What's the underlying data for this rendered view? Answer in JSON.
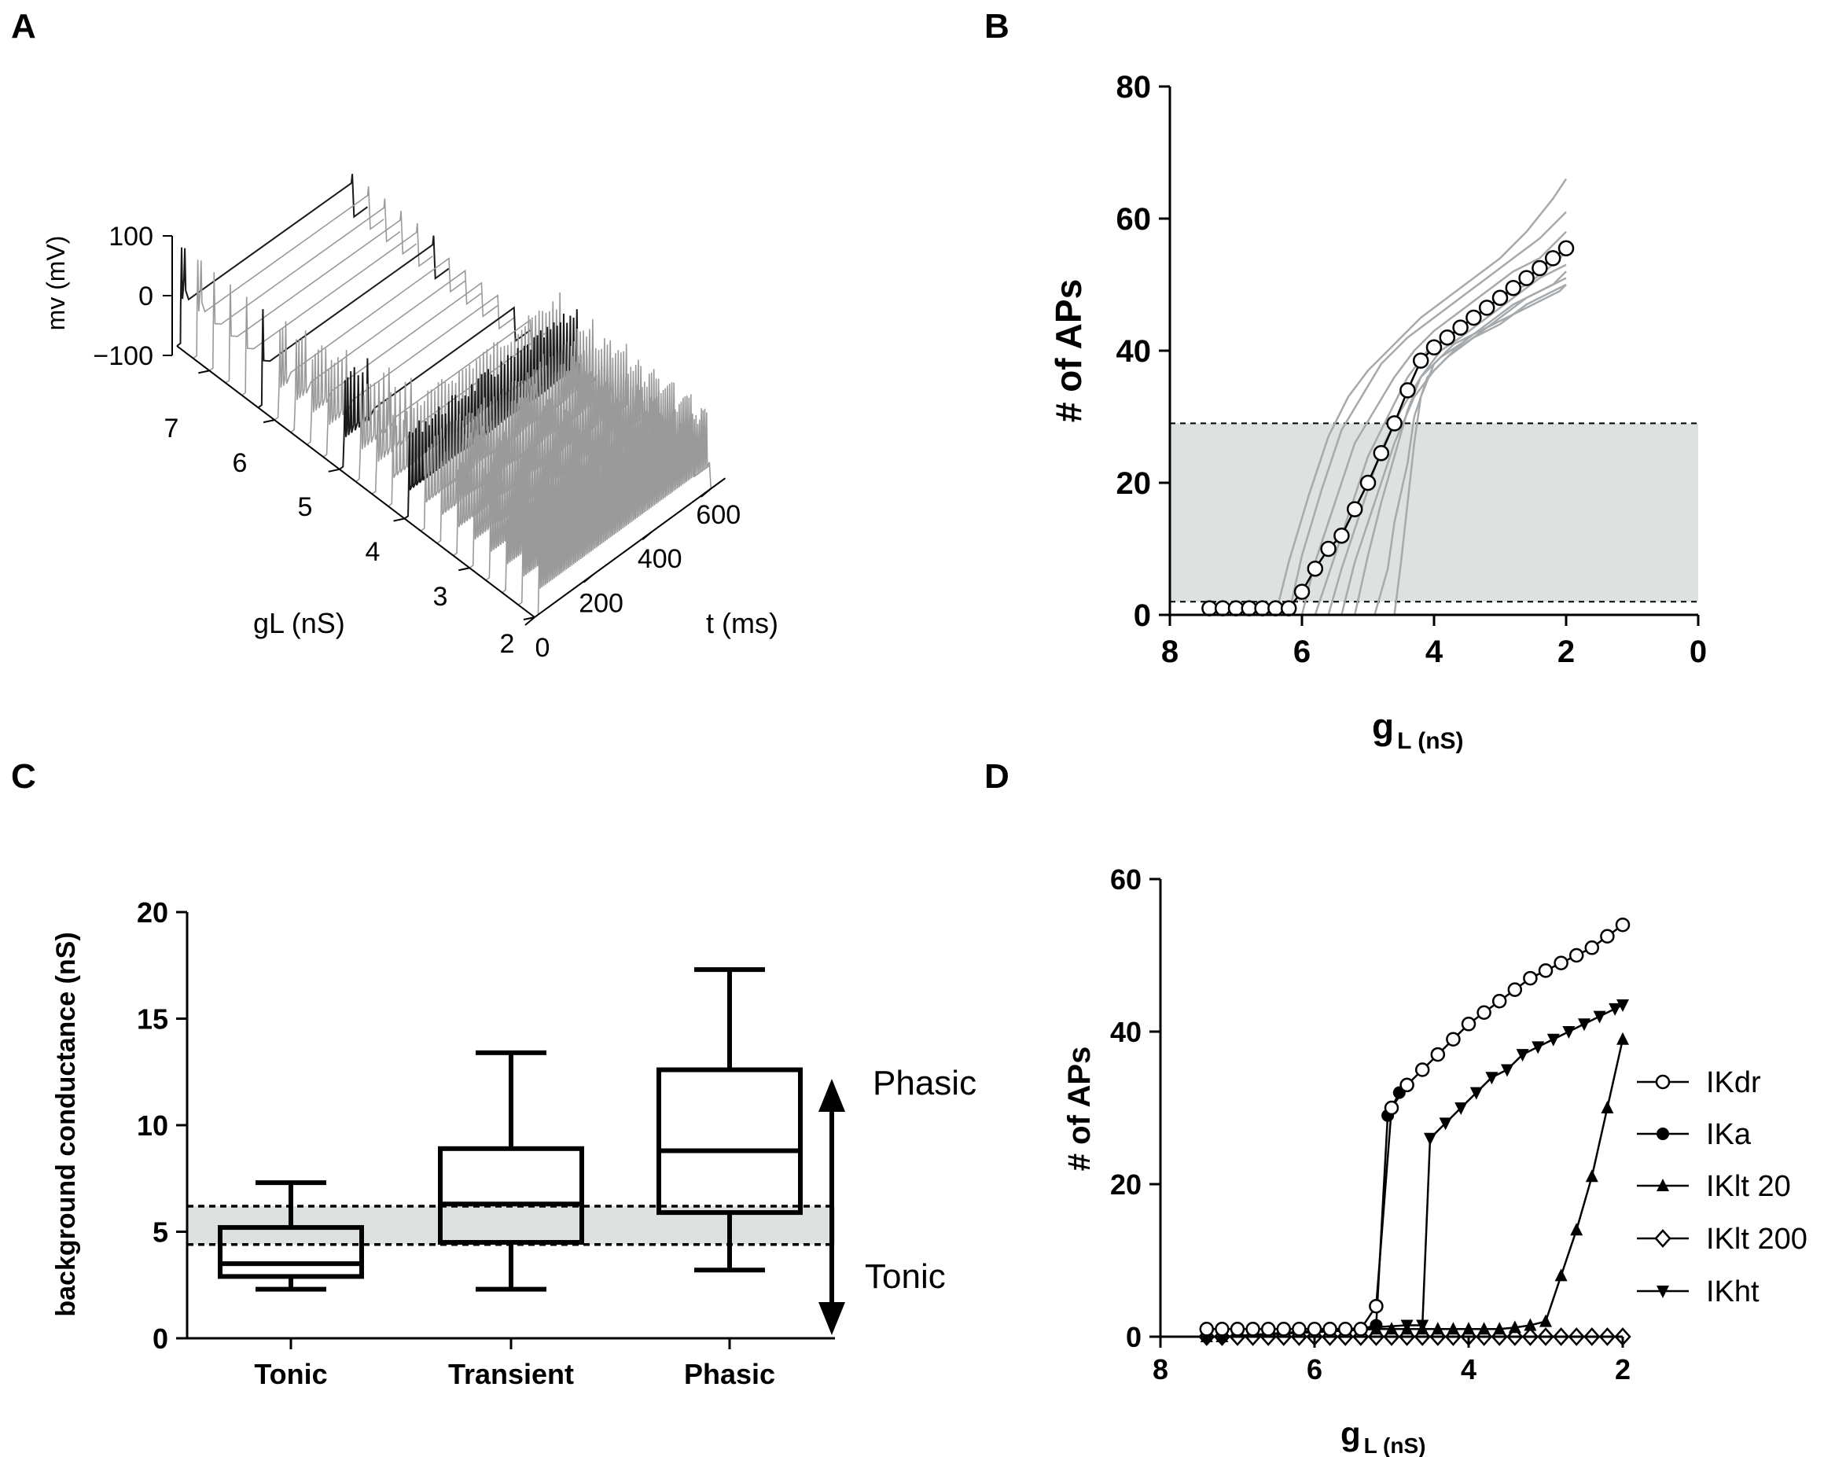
{
  "figure": {
    "panel_labels": [
      "A",
      "B",
      "C",
      "D"
    ]
  },
  "colors": {
    "ink": "#000000",
    "trace_gray": "#9a9a9a",
    "trace_dark": "#1a1a1a",
    "shade": "#dde2e0",
    "model_gray": "#a6aaad"
  },
  "chart_data": [
    {
      "panel": "A",
      "type": "line",
      "title": "",
      "description_axes": "3D waterfall of membrane voltage traces vs time for a range of leak conductances",
      "xlabel": "t (ms)",
      "ylabel": "gL (nS)",
      "zlabel": "mv (mV)",
      "x_ticks": [
        "0",
        "200",
        "400",
        "600"
      ],
      "y_ticks": [
        "2",
        "3",
        "4",
        "5",
        "6",
        "7"
      ],
      "z_ticks": [
        "100",
        "0",
        "−100"
      ],
      "x_range": [
        0,
        650
      ],
      "y_range": [
        2,
        7.5
      ],
      "z_range": [
        -100,
        100
      ],
      "gl_values": [
        7.5,
        7.25,
        7.0,
        6.75,
        6.5,
        6.25,
        6.0,
        5.75,
        5.5,
        5.25,
        5.0,
        4.75,
        4.5,
        4.25,
        4.0,
        3.75,
        3.5,
        3.25,
        3.0,
        2.75,
        2.5,
        2.25,
        2.0
      ],
      "stimulus_ms": [
        0,
        600
      ]
    },
    {
      "panel": "B",
      "type": "line",
      "title": "",
      "xlabel": "g",
      "xlabel_sub": "L (nS)",
      "ylabel": "# of APs",
      "xlim": [
        8,
        0
      ],
      "ylim": [
        0,
        80
      ],
      "x_ticks": [
        "8",
        "6",
        "4",
        "2",
        "0"
      ],
      "y_ticks": [
        "0",
        "20",
        "40",
        "60",
        "80"
      ],
      "band": [
        2,
        29
      ],
      "series": [
        {
          "name": "mean",
          "x": [
            7.4,
            7.2,
            7.0,
            6.8,
            6.6,
            6.4,
            6.2,
            6.0,
            5.8,
            5.6,
            5.4,
            5.2,
            5.0,
            4.8,
            4.6,
            4.4,
            4.2,
            4.0,
            3.8,
            3.6,
            3.4,
            3.2,
            3.0,
            2.8,
            2.6,
            2.4,
            2.2,
            2.0
          ],
          "y": [
            1,
            1,
            1,
            1,
            1,
            1,
            1,
            3.5,
            7,
            10,
            12,
            16,
            20,
            24.5,
            29,
            34,
            38.5,
            40.5,
            42,
            43.5,
            45,
            46.5,
            48,
            49.5,
            51,
            52.5,
            54,
            55.5
          ]
        }
      ],
      "model_curves": [
        {
          "x": [
            6.4,
            6.2,
            5.9,
            5.6,
            5.3,
            5.0,
            4.6,
            4.2,
            3.8,
            3.4,
            3.0,
            2.6,
            2.2,
            2.0
          ],
          "y": [
            0,
            8,
            18,
            27,
            33,
            37,
            41,
            45,
            48,
            51,
            54,
            58,
            63,
            66
          ]
        },
        {
          "x": [
            6.2,
            6.0,
            5.7,
            5.4,
            5.1,
            4.8,
            4.4,
            4.0,
            3.6,
            3.2,
            2.8,
            2.4,
            2.0
          ],
          "y": [
            0,
            9,
            19,
            28,
            33,
            38,
            42,
            45,
            48,
            51,
            54,
            57,
            61
          ]
        },
        {
          "x": [
            6.0,
            5.8,
            5.5,
            5.2,
            4.9,
            4.6,
            4.3,
            4.0,
            3.6,
            3.2,
            2.8,
            2.4,
            2.0
          ],
          "y": [
            0,
            8,
            17,
            26,
            31,
            36,
            40,
            43,
            46,
            49,
            52,
            54,
            58
          ]
        },
        {
          "x": [
            5.8,
            5.6,
            5.3,
            5.0,
            4.7,
            4.4,
            4.1,
            3.8,
            3.4,
            3.0,
            2.6,
            2.2,
            2.0
          ],
          "y": [
            0,
            6,
            15,
            24,
            30,
            36,
            40,
            42,
            45,
            48,
            50,
            53,
            55
          ]
        },
        {
          "x": [
            5.6,
            5.4,
            5.1,
            4.8,
            4.5,
            4.2,
            3.9,
            3.6,
            3.2,
            2.8,
            2.4,
            2.0
          ],
          "y": [
            0,
            7,
            16,
            25,
            31,
            36,
            40,
            42,
            45,
            48,
            51,
            53
          ]
        },
        {
          "x": [
            5.4,
            5.2,
            4.9,
            4.6,
            4.3,
            4.0,
            3.7,
            3.4,
            3.0,
            2.6,
            2.2,
            2.0
          ],
          "y": [
            0,
            8,
            17,
            26,
            33,
            37,
            40,
            42,
            45,
            48,
            50,
            52
          ]
        },
        {
          "x": [
            5.2,
            5.0,
            4.8,
            4.6,
            4.4,
            4.2,
            3.9,
            3.6,
            3.2,
            2.8,
            2.4,
            2.0
          ],
          "y": [
            0,
            9,
            17,
            24,
            31,
            36,
            39,
            41,
            44,
            47,
            49,
            51
          ]
        },
        {
          "x": [
            4.9,
            4.7,
            4.6,
            4.4,
            4.3,
            4.1,
            3.8,
            3.4,
            3.0,
            2.6,
            2.2,
            2.0
          ],
          "y": [
            0,
            7,
            14,
            23,
            30,
            36,
            39,
            42,
            44,
            47,
            49,
            50
          ]
        },
        {
          "x": [
            4.6,
            4.5,
            4.4,
            4.3,
            4.2,
            4.0,
            3.7,
            3.3,
            2.9,
            2.5,
            2.1,
            2.0
          ],
          "y": [
            0,
            8,
            17,
            26,
            33,
            38,
            41,
            43,
            45,
            47,
            49,
            50
          ]
        }
      ]
    },
    {
      "panel": "C",
      "type": "box",
      "title": "",
      "ylabel": "background conductance (nS)",
      "ylim": [
        0,
        20
      ],
      "y_ticks": [
        "0",
        "5",
        "10",
        "15",
        "20"
      ],
      "categories": [
        "Tonic",
        "Transient",
        "Phasic"
      ],
      "boxes": [
        {
          "min": 2.3,
          "q1": 2.9,
          "median": 3.5,
          "q3": 5.2,
          "max": 7.3
        },
        {
          "min": 2.3,
          "q1": 4.5,
          "median": 6.3,
          "q3": 8.9,
          "max": 13.4
        },
        {
          "min": 3.2,
          "q1": 5.9,
          "median": 8.8,
          "q3": 12.6,
          "max": 17.3
        }
      ],
      "band": [
        4.4,
        6.2
      ],
      "annotations": [
        "Phasic",
        "Tonic"
      ]
    },
    {
      "panel": "D",
      "type": "line",
      "title": "",
      "xlabel": "g",
      "xlabel_sub": "L (nS)",
      "ylabel": "# of APs",
      "xlim": [
        8,
        2
      ],
      "ylim": [
        0,
        60
      ],
      "x_ticks": [
        "8",
        "6",
        "4",
        "2"
      ],
      "y_ticks": [
        "0",
        "20",
        "40",
        "60"
      ],
      "legend_position": "right",
      "series": [
        {
          "name": "IKdr",
          "marker": "circle-open",
          "x": [
            7.4,
            7.2,
            7.0,
            6.8,
            6.6,
            6.4,
            6.2,
            6.0,
            5.8,
            5.6,
            5.4,
            5.2,
            5.0,
            4.8,
            4.6,
            4.4,
            4.2,
            4.0,
            3.8,
            3.6,
            3.4,
            3.2,
            3.0,
            2.8,
            2.6,
            2.4,
            2.2,
            2.0
          ],
          "y": [
            1,
            1,
            1,
            1,
            1,
            1,
            1,
            1,
            1,
            1,
            1,
            4,
            30,
            33,
            35,
            37,
            39,
            41,
            42.5,
            44,
            45.5,
            47,
            48,
            49,
            50,
            51,
            52.5,
            54
          ]
        },
        {
          "name": "IKa",
          "marker": "circle-filled",
          "x": [
            7.4,
            7.2,
            7.0,
            6.8,
            6.6,
            6.4,
            6.2,
            6.0,
            5.8,
            5.6,
            5.4,
            5.2,
            5.05,
            4.9
          ],
          "y": [
            1,
            1,
            1,
            1,
            1,
            1,
            1,
            1,
            1,
            1,
            1,
            1.5,
            29,
            32
          ]
        },
        {
          "name": "IKlt 20",
          "marker": "triangle-up",
          "x": [
            7.4,
            7.2,
            5.2,
            5.0,
            4.8,
            4.6,
            4.4,
            4.2,
            4.0,
            3.8,
            3.6,
            3.4,
            3.2,
            3.0,
            2.8,
            2.6,
            2.4,
            2.2,
            2.0
          ],
          "y": [
            0,
            0,
            1,
            1,
            1,
            1,
            1,
            1,
            1,
            1,
            1,
            1.2,
            1.5,
            2,
            8,
            14,
            21,
            30,
            39
          ]
        },
        {
          "name": "IKlt 200",
          "marker": "diamond-open",
          "x": [
            7.4,
            7.2,
            7.0,
            6.8,
            6.6,
            6.4,
            6.2,
            6.0,
            5.8,
            5.6,
            5.4,
            5.2,
            5.0,
            4.8,
            4.6,
            4.4,
            4.2,
            4.0,
            3.8,
            3.6,
            3.4,
            3.2,
            3.0,
            2.8,
            2.6,
            2.4,
            2.2,
            2.0
          ],
          "y": [
            0,
            0,
            0,
            0,
            0,
            0,
            0,
            0,
            0,
            0,
            0,
            0,
            0,
            0,
            0,
            0,
            0,
            0,
            0,
            0,
            0,
            0,
            0,
            0,
            0,
            0,
            0,
            0
          ]
        },
        {
          "name": "IKht",
          "marker": "triangle-down",
          "x": [
            7.4,
            7.2,
            4.8,
            4.6,
            4.5,
            4.3,
            4.1,
            3.9,
            3.7,
            3.5,
            3.3,
            3.1,
            2.9,
            2.7,
            2.5,
            2.3,
            2.1,
            2.0
          ],
          "y": [
            0,
            0,
            1.5,
            1.5,
            26,
            28,
            30,
            32,
            34,
            35,
            37,
            38,
            39,
            40,
            41,
            42,
            43,
            43.5
          ]
        }
      ]
    }
  ]
}
